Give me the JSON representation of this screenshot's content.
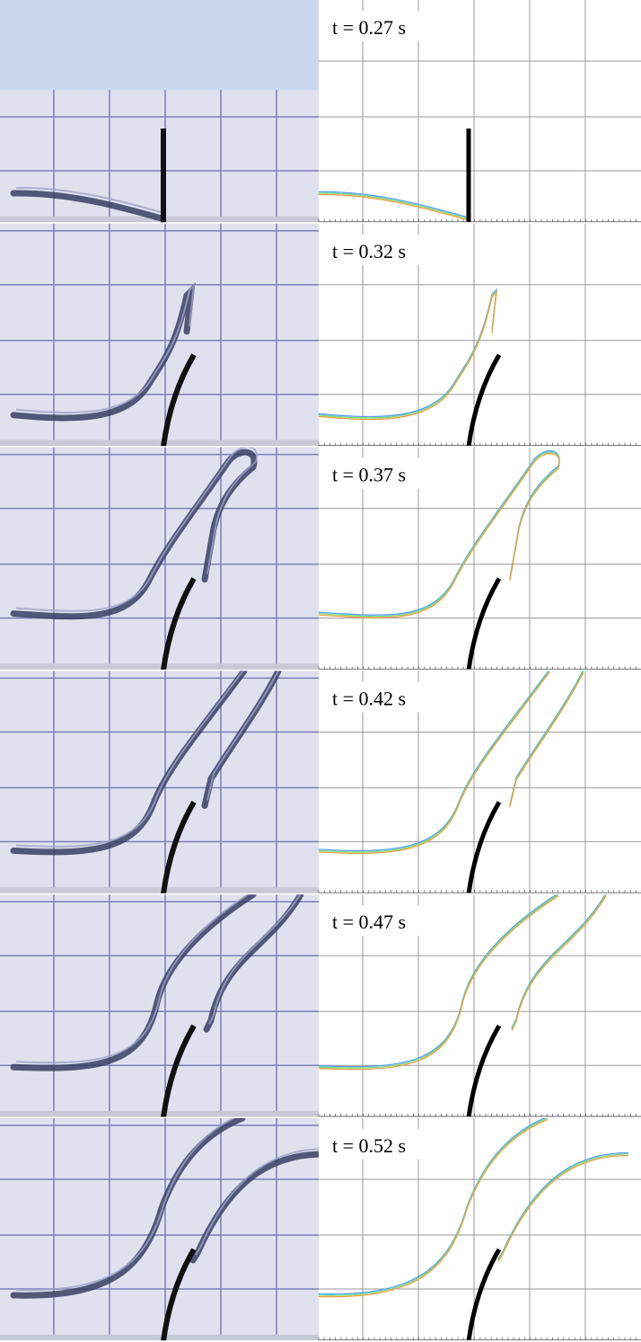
{
  "panels": [
    {
      "label": "t = 0.27 s"
    },
    {
      "label": "t = 0.32 s"
    },
    {
      "label": "t = 0.37 s"
    },
    {
      "label": "t = 0.42 s"
    },
    {
      "label": "t = 0.47 s"
    },
    {
      "label": "t = 0.52 s"
    }
  ]
}
